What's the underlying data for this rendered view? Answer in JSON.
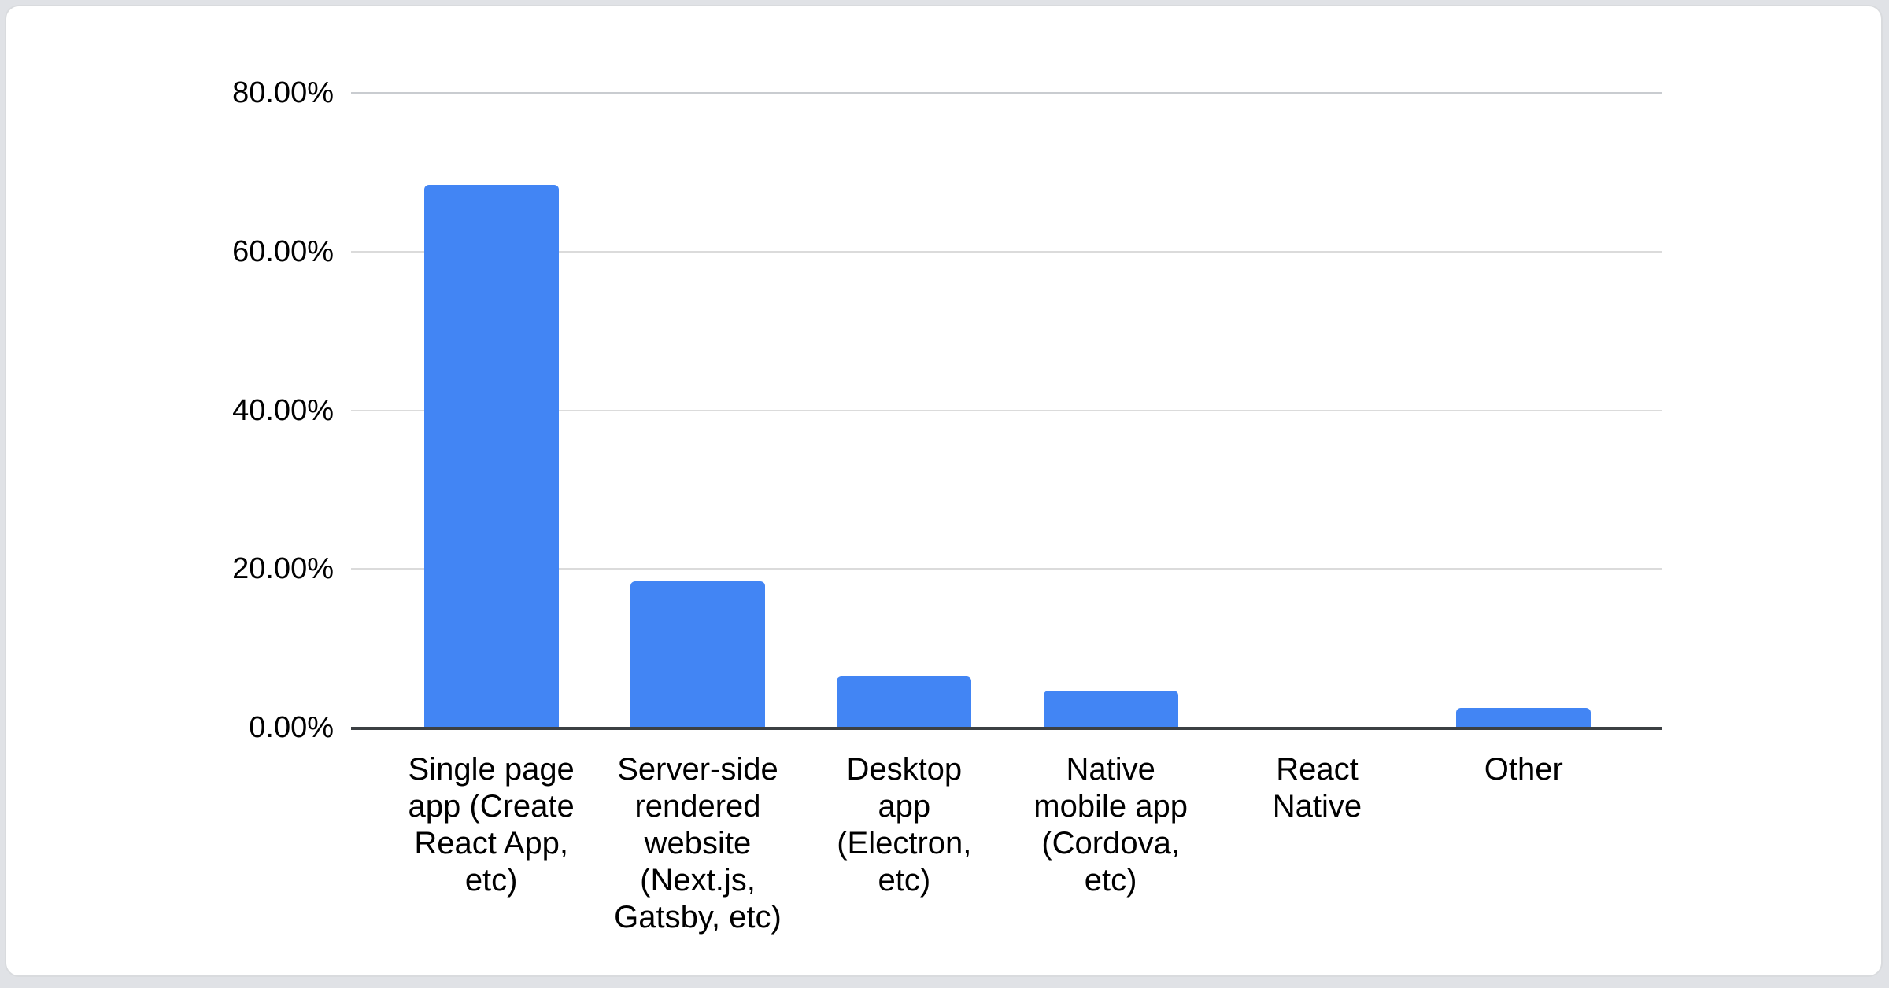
{
  "chart_data": {
    "type": "bar",
    "title": "",
    "xlabel": "",
    "ylabel": "",
    "ylim": [
      0,
      80
    ],
    "grid": true,
    "legend": "none",
    "categories": [
      "Single page app (Create React App, etc)",
      "Server-side rendered website (Next.js, Gatsby, etc)",
      "Desktop app (Electron, etc)",
      "Native mobile app (Cordova, etc)",
      "React Native",
      "Other"
    ],
    "categories_display": [
      "Single page\napp (Create\nReact App,\netc)",
      "Server-side\nrendered\nwebsite\n(Next.js,\nGatsby, etc)",
      "Desktop\napp\n(Electron,\netc)",
      "Native\nmobile app\n(Cordova,\netc)",
      "React\nNative",
      "Other"
    ],
    "values": [
      68.4,
      18.4,
      6.4,
      4.7,
      0,
      2.5
    ],
    "y_ticks": [
      "80.00%",
      "60.00%",
      "40.00%",
      "20.00%",
      "0.00%"
    ]
  },
  "colors": {
    "bar": "#4285f4",
    "gridline": "#dbdbdb",
    "gridline_top": "#c9ccd0",
    "axis_line": "#3c4043",
    "text": "#000000",
    "card_bg": "#ffffff",
    "card_border": "#d9dbde",
    "page_bg": "#e0e2e6"
  }
}
